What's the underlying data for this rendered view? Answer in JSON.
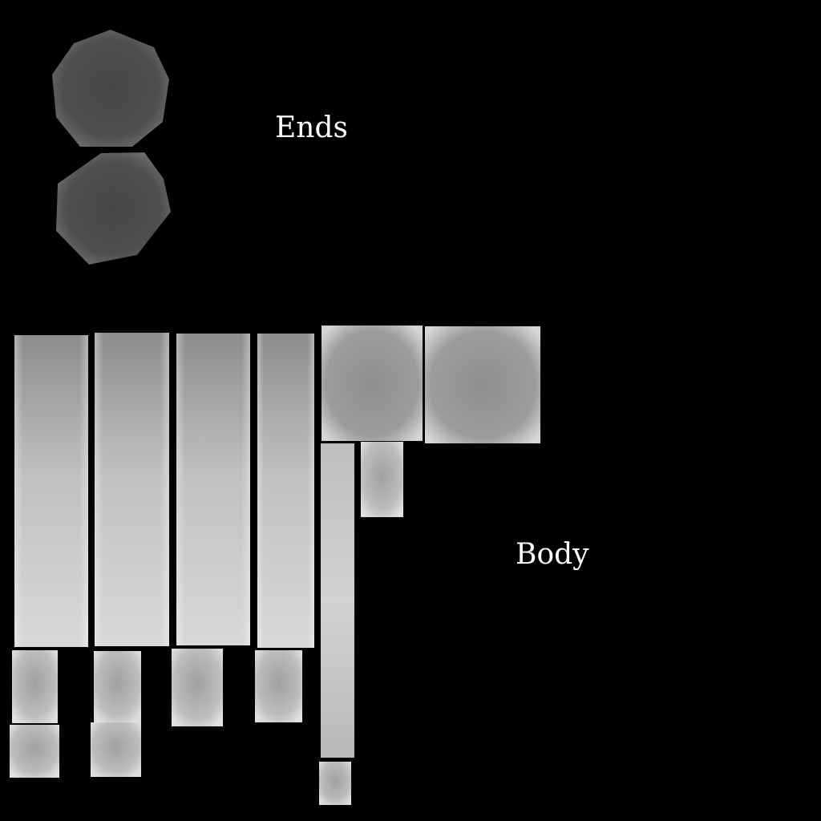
{
  "labels": {
    "ends": "Ends",
    "body": "Body"
  },
  "colors": {
    "background": "#000000",
    "text": "#ffffff",
    "ends_fill_center": "#4a4a4a",
    "ends_fill_edge": "#5e5e5e",
    "panel_dark": "#8f8f8f",
    "panel_light": "#d2d2d2",
    "panel_edge": "#e6e6e6"
  }
}
